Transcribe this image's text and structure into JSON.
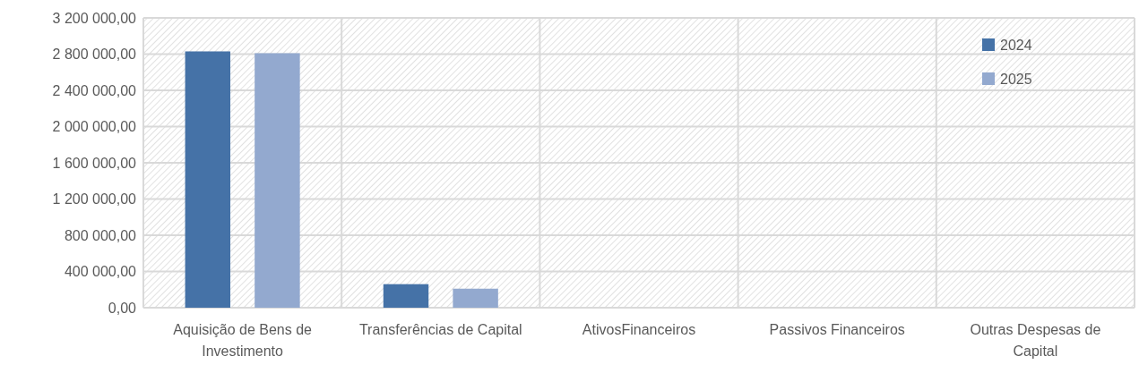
{
  "chart_data": {
    "type": "bar",
    "categories": [
      "Aquisição de Bens de Investimento",
      "Transferências de Capital",
      "AtivosFinanceiros",
      "Passivos Financeiros",
      "Outras Despesas de Capital"
    ],
    "series": [
      {
        "name": "2024",
        "color": "#4572a7",
        "values": [
          2830000,
          260000,
          0,
          0,
          0
        ]
      },
      {
        "name": "2025",
        "color": "#93a9cf",
        "values": [
          2810000,
          210000,
          0,
          0,
          0
        ]
      }
    ],
    "ylim": [
      0,
      3200000
    ],
    "yticks": [
      {
        "value": 0,
        "label": "0,00"
      },
      {
        "value": 400000,
        "label": "400 000,00"
      },
      {
        "value": 800000,
        "label": "800 000,00"
      },
      {
        "value": 1200000,
        "label": "1 200 000,00"
      },
      {
        "value": 1600000,
        "label": "1 600 000,00"
      },
      {
        "value": 2000000,
        "label": "2 000 000,00"
      },
      {
        "value": 2400000,
        "label": "2 400 000,00"
      },
      {
        "value": 2800000,
        "label": "2 800 000,00"
      },
      {
        "value": 3200000,
        "label": "3 200 000,00"
      }
    ],
    "grid": true,
    "legend": "top right"
  }
}
